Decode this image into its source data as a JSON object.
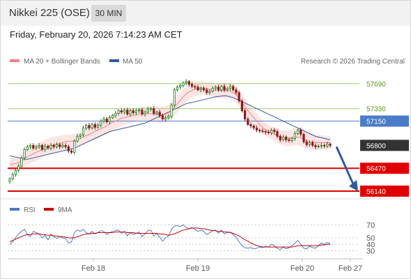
{
  "header": {
    "title": "Nikkei 225 (OSE)",
    "timeframe": "30 MIN",
    "datetime": "Friday, February 20, 2026 7:14:23 AM CET"
  },
  "legend": {
    "ma20": "MA 20 + Bollinger Bands",
    "ma50": "MA 50",
    "credit": "Research © 2026 Trading Central",
    "rsi": "RSI",
    "rsi_ma": "9MA"
  },
  "colors": {
    "ma20": "#f08080",
    "bollinger_fill": "#fde0e0",
    "ma50": "#2e5a9e",
    "candle_up": "#1a7a1a",
    "candle_down": "#8b1a1a",
    "resistance": "#9acd60",
    "pivot": "#4a7bc8",
    "support": "#e00000",
    "last": "#333333",
    "arrow": "#2e5a9e",
    "rsi": "#4a7bc8",
    "rsi_ma": "#c80000"
  },
  "chart_data": [
    {
      "type": "candlestick",
      "ylim": [
        56040,
        57880
      ],
      "x_tick_labels": [
        "Feb 18",
        "Feb 19",
        "Feb 20",
        "Feb 27"
      ],
      "levels": [
        {
          "label": "57690",
          "value": 57690,
          "kind": "resistance"
        },
        {
          "label": "57330",
          "value": 57330,
          "kind": "resistance"
        },
        {
          "label": "57150",
          "value": 57150,
          "kind": "pivot"
        },
        {
          "label": "56800",
          "value": 56800,
          "kind": "last"
        },
        {
          "label": "56470",
          "value": 56470,
          "kind": "support"
        },
        {
          "label": "56140",
          "value": 56140,
          "kind": "support"
        }
      ],
      "forecast_arrow": {
        "from": 56800,
        "to": 56140
      },
      "close_series": [
        56320,
        56380,
        56440,
        56500,
        56620,
        56740,
        56780,
        56800,
        56760,
        56780,
        56800,
        56740,
        56790,
        56760,
        56800,
        56780,
        56810,
        56780,
        56800,
        56780,
        56720,
        56700,
        56860,
        56930,
        56950,
        57050,
        57090,
        57050,
        57100,
        57060,
        57090,
        57150,
        57180,
        57140,
        57200,
        57230,
        57260,
        57300,
        57280,
        57310,
        57250,
        57300,
        57270,
        57300,
        57310,
        57250,
        57280,
        57320,
        57330,
        57260,
        57280,
        57230,
        57180,
        57200,
        57220,
        57380,
        57600,
        57640,
        57660,
        57700,
        57720,
        57680,
        57650,
        57640,
        57600,
        57620,
        57600,
        57560,
        57580,
        57620,
        57640,
        57600,
        57650,
        57600,
        57620,
        57650,
        57600,
        57560,
        57440,
        57300,
        57180,
        57100,
        57080,
        57050,
        57020,
        57010,
        57000,
        56990,
        56980,
        57020,
        57000,
        56930,
        56880,
        56920,
        56880,
        56870,
        56900,
        56970,
        57020,
        56960,
        56850,
        56810,
        56840,
        56800,
        56780,
        56790,
        56800,
        56790,
        56820,
        56800
      ],
      "ma20_series": [
        56520,
        56530,
        56540,
        56550,
        56580,
        56610,
        56640,
        56650,
        56680,
        56700,
        56720,
        56740,
        56760,
        56780,
        56800,
        56810,
        56820,
        56830,
        56840,
        56850,
        56860,
        56860,
        56870,
        56880,
        56900,
        56920,
        56940,
        56960,
        56980,
        57000,
        57020,
        57040,
        57060,
        57080,
        57110,
        57130,
        57150,
        57170,
        57190,
        57200,
        57210,
        57220,
        57230,
        57240,
        57250,
        57260,
        57260,
        57260,
        57260,
        57255,
        57250,
        57240,
        57240,
        57250,
        57270,
        57300,
        57350,
        57400,
        57450,
        57500,
        57540,
        57570,
        57590,
        57610,
        57620,
        57630,
        57630,
        57620,
        57610,
        57600,
        57590,
        57590,
        57590,
        57590,
        57590,
        57580,
        57560,
        57530,
        57480,
        57420,
        57360,
        57300,
        57250,
        57200,
        57150,
        57100,
        57060,
        57030,
        57000,
        56980,
        56960,
        56940,
        56920,
        56910,
        56900,
        56900,
        56910,
        56920,
        56920,
        56910,
        56890,
        56870,
        56860,
        56850,
        56840,
        56840,
        56840,
        56840,
        56840,
        56840
      ],
      "ma50_series": [
        56650,
        56640,
        56630,
        56620,
        56610,
        56600,
        56600,
        56610,
        56620,
        56630,
        56640,
        56650,
        56660,
        56670,
        56680,
        56690,
        56700,
        56710,
        56720,
        56730,
        56740,
        56750,
        56760,
        56780,
        56800,
        56820,
        56840,
        56860,
        56880,
        56900,
        56920,
        56940,
        56960,
        56980,
        57000,
        57010,
        57020,
        57030,
        57040,
        57050,
        57060,
        57070,
        57080,
        57090,
        57100,
        57110,
        57120,
        57140,
        57160,
        57180,
        57200,
        57220,
        57240,
        57260,
        57280,
        57300,
        57320,
        57340,
        57360,
        57380,
        57400,
        57410,
        57420,
        57430,
        57440,
        57450,
        57460,
        57470,
        57480,
        57490,
        57500,
        57505,
        57510,
        57515,
        57510,
        57500,
        57490,
        57470,
        57450,
        57430,
        57410,
        57390,
        57370,
        57350,
        57330,
        57310,
        57290,
        57270,
        57250,
        57230,
        57210,
        57190,
        57170,
        57150,
        57130,
        57110,
        57090,
        57070,
        57050,
        57030,
        57010,
        56990,
        56970,
        56950,
        56930,
        56920,
        56910,
        56900,
        56890,
        56880
      ]
    },
    {
      "type": "line",
      "ylim": [
        20,
        80
      ],
      "y_ticks": [
        70,
        50,
        40,
        30
      ],
      "rsi_series": [
        40,
        44,
        50,
        56,
        60,
        63,
        55,
        52,
        60,
        58,
        56,
        50,
        54,
        47,
        56,
        52,
        49,
        52,
        50,
        49,
        42,
        44,
        58,
        62,
        60,
        63,
        58,
        56,
        60,
        56,
        58,
        61,
        60,
        55,
        58,
        60,
        61,
        62,
        57,
        60,
        53,
        58,
        55,
        57,
        59,
        52,
        56,
        61,
        62,
        53,
        57,
        51,
        45,
        50,
        53,
        63,
        68,
        69,
        67,
        70,
        66,
        64,
        66,
        63,
        60,
        62,
        60,
        55,
        58,
        61,
        62,
        57,
        62,
        56,
        58,
        59,
        55,
        51,
        44,
        38,
        35,
        34,
        35,
        33,
        34,
        36,
        35,
        37,
        36,
        40,
        38,
        34,
        32,
        36,
        33,
        35,
        38,
        42,
        46,
        40,
        34,
        33,
        37,
        35,
        34,
        38,
        42,
        40,
        43,
        41
      ],
      "ma_series": [
        44,
        46,
        48,
        50,
        52,
        54,
        55,
        55,
        56,
        56,
        56,
        55,
        55,
        54,
        54,
        53,
        53,
        52,
        52,
        51,
        50,
        50,
        50,
        52,
        53,
        55,
        56,
        56,
        57,
        57,
        58,
        58,
        58,
        58,
        58,
        58,
        59,
        59,
        59,
        59,
        58,
        58,
        58,
        57,
        57,
        57,
        57,
        57,
        57,
        57,
        57,
        56,
        56,
        55,
        54,
        55,
        56,
        58,
        60,
        62,
        63,
        64,
        65,
        65,
        65,
        64,
        64,
        63,
        62,
        61,
        61,
        60,
        60,
        59,
        59,
        58,
        57,
        55,
        53,
        50,
        47,
        45,
        42,
        40,
        38,
        37,
        36,
        36,
        36,
        36,
        36,
        36,
        36,
        36,
        36,
        36,
        36,
        37,
        38,
        38,
        38,
        38,
        38,
        38,
        38,
        38,
        39,
        39,
        40,
        40
      ]
    }
  ]
}
